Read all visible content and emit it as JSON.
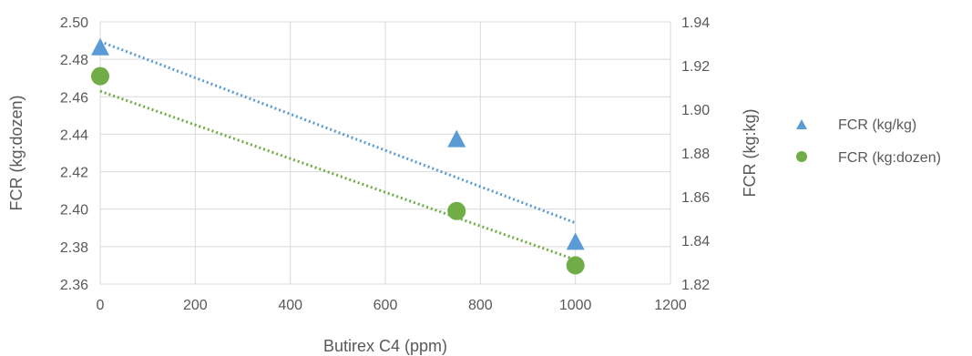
{
  "chart_data": {
    "type": "scatter",
    "xlabel": "Butirex C4 (ppm)",
    "ylabel_left": "FCR (kg:dozen)",
    "ylabel_right": "FCR (kg:kg)",
    "xlim": [
      0,
      1200
    ],
    "xticks": [
      0,
      200,
      400,
      600,
      800,
      1000,
      1200
    ],
    "ylim_left": [
      2.36,
      2.5
    ],
    "yticks_left": [
      "2.36",
      "2.38",
      "2.40",
      "2.42",
      "2.44",
      "2.46",
      "2.48",
      "2.50"
    ],
    "ylim_right": [
      1.82,
      1.94
    ],
    "yticks_right": [
      "1.82",
      "1.84",
      "1.86",
      "1.88",
      "1.90",
      "1.92",
      "1.94"
    ],
    "grid": true,
    "legend_position": "right",
    "series": [
      {
        "name": "FCR (kg/kg)",
        "axis": "right",
        "marker": "triangle",
        "color": "#5b9bd5",
        "x": [
          0,
          750,
          1000
        ],
        "y": [
          1.928,
          1.886,
          1.839
        ],
        "trendline": {
          "x": [
            0,
            1000
          ],
          "y": [
            1.931,
            1.848
          ]
        }
      },
      {
        "name": "FCR (kg:dozen)",
        "axis": "left",
        "marker": "circle",
        "color": "#70ad47",
        "x": [
          0,
          750,
          1000
        ],
        "y": [
          2.471,
          2.399,
          2.37
        ],
        "trendline": {
          "x": [
            0,
            1000
          ],
          "y": [
            2.463,
            2.373
          ]
        }
      }
    ]
  }
}
